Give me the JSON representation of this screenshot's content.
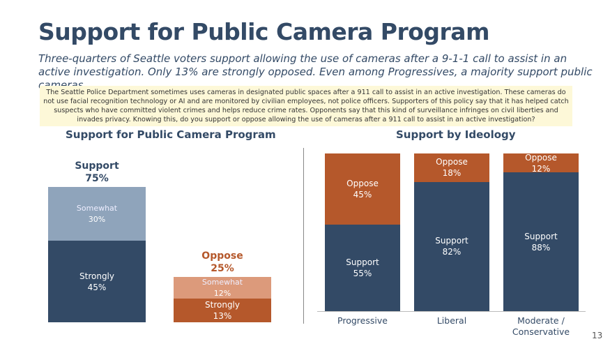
{
  "title": "Support for Public Camera Program",
  "subtitle": "Three-quarters of Seattle voters support allowing the use of cameras after a 9-1-1 call to assist in an active investigation. Only 13% are strongly opposed. Even among Progressives, a majority support public cameras.",
  "question": "The Seattle Police Department sometimes uses cameras in designated public spaces after a 911 call to assist in an active investigation. These cameras do not use facial recognition technology or AI and are monitored by civilian employees, not police officers. Supporters of this policy say that it has helped catch suspects who have committed violent crimes and helps reduce crime rates. Opponents say that this kind of surveillance infringes on civil liberties and invades privacy. Knowing this, do you support or oppose allowing the use of cameras after a 911 call to assist in an active investigation?",
  "page_number": "13",
  "chart_data": [
    {
      "type": "stacked-bar",
      "title": "Support for Public Camera Program",
      "categories": [
        "Support",
        "Oppose"
      ],
      "totals": [
        75,
        25
      ],
      "total_labels": [
        "75%",
        "25%"
      ],
      "total_colors": [
        "#334a66",
        "#b5582b"
      ],
      "series": [
        {
          "name": "Strongly",
          "colors": [
            "#334a66",
            "#b5582b"
          ],
          "values": [
            45,
            13
          ],
          "value_labels": [
            "45%",
            "13%"
          ]
        },
        {
          "name": "Somewhat",
          "colors": [
            "#8fa4bb",
            "#dc9a7b"
          ],
          "values": [
            30,
            12
          ],
          "value_labels": [
            "30%",
            "12%"
          ]
        }
      ]
    },
    {
      "type": "stacked-bar-100",
      "title": "Support by Ideology",
      "categories": [
        "Progressive",
        "Liberal",
        "Moderate / Conservative"
      ],
      "series": [
        {
          "name": "Support",
          "color": "#334a66",
          "values": [
            55,
            82,
            88
          ],
          "value_labels": [
            "55%",
            "82%",
            "88%"
          ]
        },
        {
          "name": "Oppose",
          "color": "#b5582b",
          "values": [
            45,
            18,
            12
          ],
          "value_labels": [
            "45%",
            "18%",
            "12%"
          ]
        }
      ]
    }
  ]
}
